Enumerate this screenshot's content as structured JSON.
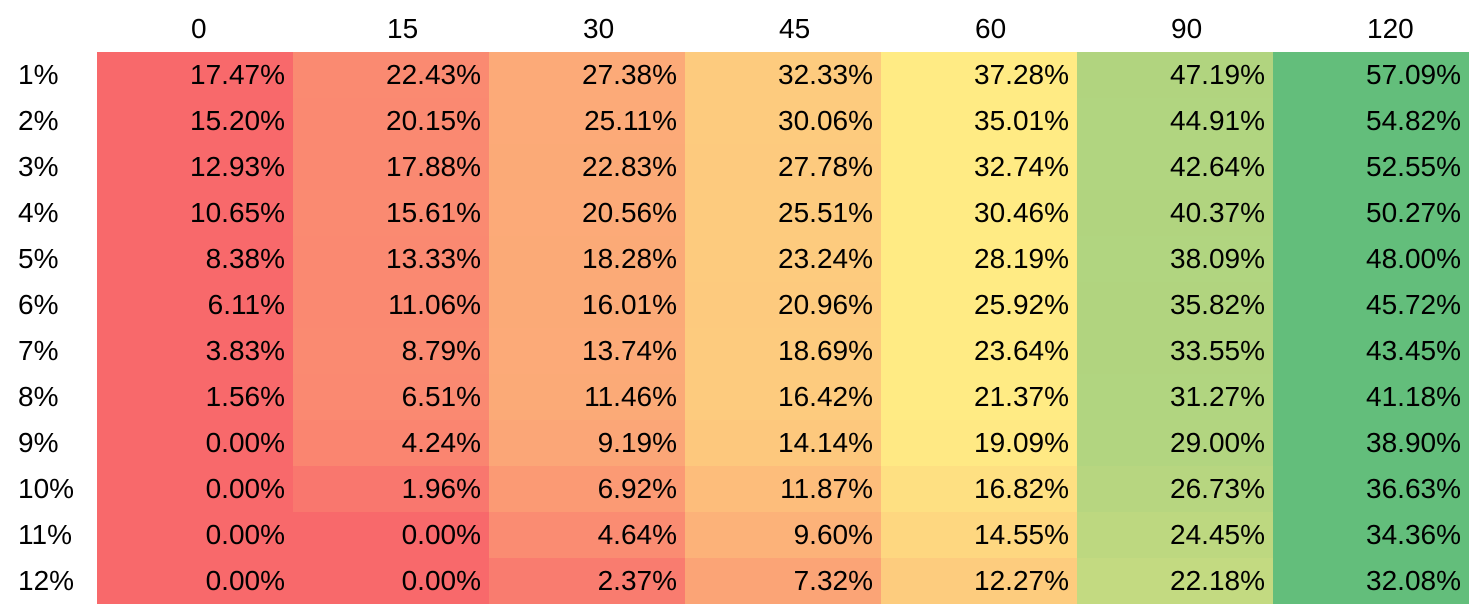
{
  "chart_data": {
    "type": "heatmap",
    "column_headers": [
      "0",
      "15",
      "30",
      "45",
      "60",
      "90",
      "120"
    ],
    "row_headers": [
      "1%",
      "2%",
      "3%",
      "4%",
      "5%",
      "6%",
      "7%",
      "8%",
      "9%",
      "10%",
      "11%",
      "12%"
    ],
    "cells": [
      [
        "17.47%",
        "22.43%",
        "27.38%",
        "32.33%",
        "37.28%",
        "47.19%",
        "57.09%"
      ],
      [
        "15.20%",
        "20.15%",
        "25.11%",
        "30.06%",
        "35.01%",
        "44.91%",
        "54.82%"
      ],
      [
        "12.93%",
        "17.88%",
        "22.83%",
        "27.78%",
        "32.74%",
        "42.64%",
        "52.55%"
      ],
      [
        "10.65%",
        "15.61%",
        "20.56%",
        "25.51%",
        "30.46%",
        "40.37%",
        "50.27%"
      ],
      [
        "8.38%",
        "13.33%",
        "18.28%",
        "23.24%",
        "28.19%",
        "38.09%",
        "48.00%"
      ],
      [
        "6.11%",
        "11.06%",
        "16.01%",
        "20.96%",
        "25.92%",
        "35.82%",
        "45.72%"
      ],
      [
        "3.83%",
        "8.79%",
        "13.74%",
        "18.69%",
        "23.64%",
        "33.55%",
        "43.45%"
      ],
      [
        "1.56%",
        "6.51%",
        "11.46%",
        "16.42%",
        "21.37%",
        "31.27%",
        "41.18%"
      ],
      [
        "0.00%",
        "4.24%",
        "9.19%",
        "14.14%",
        "19.09%",
        "29.00%",
        "38.90%"
      ],
      [
        "0.00%",
        "1.96%",
        "6.92%",
        "11.87%",
        "16.82%",
        "26.73%",
        "36.63%"
      ],
      [
        "0.00%",
        "0.00%",
        "4.64%",
        "9.60%",
        "14.55%",
        "24.45%",
        "34.36%"
      ],
      [
        "0.00%",
        "0.00%",
        "2.37%",
        "7.32%",
        "12.27%",
        "22.18%",
        "32.08%"
      ]
    ],
    "color_scale": {
      "low": "#F8696B",
      "mid": "#FFEB84",
      "high": "#63BE7B"
    },
    "color_scale_per_row": true
  }
}
